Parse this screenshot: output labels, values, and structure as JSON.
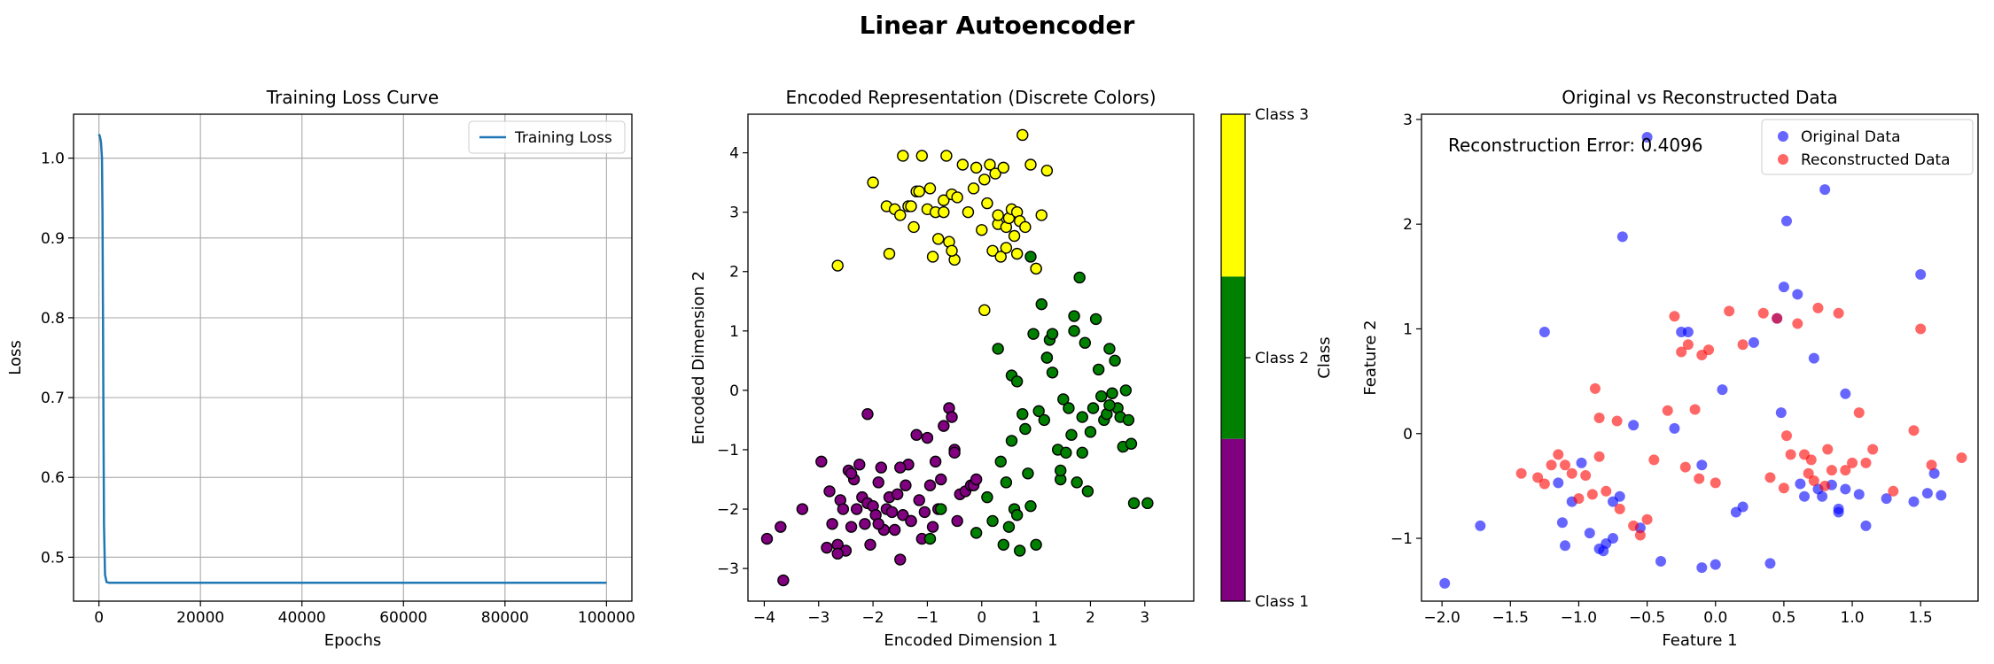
{
  "figure": {
    "title": "Linear Autoencoder"
  },
  "chart_data": [
    {
      "type": "line",
      "title": "Training Loss Curve",
      "xlabel": "Epochs",
      "ylabel": "Loss",
      "xlim": [
        -5000,
        105000
      ],
      "ylim": [
        0.445,
        1.055
      ],
      "xticks": [
        0,
        20000,
        40000,
        60000,
        80000,
        100000
      ],
      "yticks": [
        0.5,
        0.6,
        0.7,
        0.8,
        0.9,
        1.0
      ],
      "xtick_labels": [
        "0",
        "20000",
        "40000",
        "60000",
        "80000",
        "100000"
      ],
      "ytick_labels": [
        "0.5",
        "0.6",
        "0.7",
        "0.8",
        "0.9",
        "1.0"
      ],
      "grid": true,
      "legend": "upper right",
      "color": "#1f77b4",
      "series": [
        {
          "name": "Training Loss",
          "x": [
            0,
            200,
            400,
            600,
            700,
            800,
            900,
            1000,
            1200,
            1500,
            2000,
            5000,
            20000,
            50000,
            80000,
            100000
          ],
          "y": [
            1.03,
            1.027,
            1.02,
            1.0,
            0.93,
            0.8,
            0.66,
            0.54,
            0.478,
            0.469,
            0.468,
            0.468,
            0.468,
            0.468,
            0.468,
            0.468
          ]
        }
      ]
    },
    {
      "type": "scatter",
      "title": "Encoded Representation (Discrete Colors)",
      "xlabel": "Encoded Dimension 1",
      "ylabel": "Encoded Dimension 2",
      "xlim": [
        -4.3,
        3.9
      ],
      "ylim": [
        -3.55,
        4.65
      ],
      "xticks": [
        -4,
        -3,
        -2,
        -1,
        0,
        1,
        2,
        3
      ],
      "yticks": [
        -3,
        -2,
        -1,
        0,
        1,
        2,
        3,
        4
      ],
      "xtick_labels": [
        "−4",
        "−3",
        "−2",
        "−1",
        "0",
        "1",
        "2",
        "3"
      ],
      "ytick_labels": [
        "−3",
        "−2",
        "−1",
        "0",
        "1",
        "2",
        "3",
        "4"
      ],
      "grid": false,
      "colorbar": {
        "label": "Class",
        "ticks": [
          "Class 1",
          "Class 2",
          "Class 3"
        ],
        "colors": [
          "#800080",
          "#008000",
          "#ffff00"
        ]
      },
      "series": [
        {
          "name": "Class 1",
          "color": "#800080",
          "x": [
            -3.95,
            -3.7,
            -3.65,
            -3.3,
            -2.95,
            -2.85,
            -2.8,
            -2.75,
            -2.65,
            -2.6,
            -2.55,
            -2.5,
            -2.45,
            -2.4,
            -2.35,
            -2.3,
            -2.25,
            -2.2,
            -2.15,
            -2.1,
            -2.05,
            -2.0,
            -1.95,
            -1.9,
            -1.85,
            -1.8,
            -1.75,
            -1.7,
            -1.65,
            -1.6,
            -1.55,
            -1.5,
            -1.45,
            -1.4,
            -1.35,
            -1.3,
            -1.2,
            -1.15,
            -1.1,
            -1.05,
            -1.0,
            -0.95,
            -0.9,
            -0.85,
            -0.8,
            -0.75,
            -0.7,
            -0.6,
            -0.55,
            -0.5,
            -0.45,
            -0.4,
            -0.3,
            -0.2,
            -0.15,
            -0.1,
            -2.65,
            -2.1,
            -1.9,
            -1.5,
            -1.3,
            -2.4,
            -0.5
          ],
          "y": [
            -2.5,
            -2.3,
            -3.2,
            -2.0,
            -1.2,
            -2.65,
            -1.7,
            -2.25,
            -2.6,
            -1.85,
            -2.0,
            -2.7,
            -1.35,
            -2.3,
            -1.5,
            -2.0,
            -1.25,
            -1.8,
            -2.25,
            -1.9,
            -2.6,
            -1.95,
            -2.1,
            -1.55,
            -1.3,
            -2.35,
            -2.0,
            -1.8,
            -2.05,
            -2.35,
            -1.75,
            -2.85,
            -2.1,
            -1.6,
            -1.25,
            -2.2,
            -0.75,
            -1.85,
            -2.5,
            -2.05,
            -0.8,
            -1.6,
            -2.3,
            -1.2,
            -2.0,
            -1.5,
            -0.6,
            -0.3,
            -0.45,
            -1.0,
            -2.2,
            -1.75,
            -1.7,
            -1.6,
            -1.6,
            -1.5,
            -2.75,
            -0.4,
            -2.25,
            -1.3,
            -2.2,
            -1.4,
            -1.05
          ]
        },
        {
          "name": "Class 2",
          "color": "#008000",
          "x": [
            -0.95,
            -0.75,
            -0.1,
            0.1,
            0.2,
            0.35,
            0.4,
            0.45,
            0.5,
            0.55,
            0.6,
            0.65,
            0.7,
            0.75,
            0.8,
            0.85,
            0.9,
            0.95,
            1.0,
            1.05,
            1.1,
            1.15,
            1.2,
            1.25,
            1.3,
            1.4,
            1.45,
            1.5,
            1.55,
            1.6,
            1.65,
            1.7,
            1.75,
            1.8,
            1.85,
            1.9,
            1.95,
            2.0,
            2.05,
            2.1,
            2.15,
            2.2,
            2.25,
            2.3,
            2.35,
            2.4,
            2.5,
            2.55,
            2.6,
            2.65,
            2.7,
            2.75,
            2.8,
            3.05,
            0.3,
            0.65,
            0.55,
            0.9,
            1.2,
            1.7,
            1.85,
            2.45,
            1.0,
            1.3,
            1.45,
            2.35
          ],
          "y": [
            -2.5,
            -2.0,
            -2.4,
            -1.8,
            -2.2,
            -1.2,
            -2.6,
            -1.55,
            -2.3,
            0.25,
            -2.0,
            0.15,
            -2.7,
            -0.4,
            -0.65,
            -1.4,
            -1.95,
            0.95,
            -2.6,
            -0.35,
            1.45,
            -0.5,
            0.55,
            0.85,
            0.3,
            -1.0,
            -1.5,
            -0.15,
            -1.05,
            -0.3,
            -0.75,
            1.0,
            -1.55,
            1.9,
            -0.45,
            0.8,
            -1.7,
            -0.7,
            -0.3,
            1.2,
            0.35,
            -0.1,
            -0.5,
            -0.4,
            0.7,
            -0.05,
            -0.3,
            -0.45,
            -0.95,
            0.0,
            -0.5,
            -0.9,
            -1.9,
            -1.9,
            0.7,
            -2.1,
            -0.85,
            2.25,
            0.55,
            1.25,
            -1.05,
            0.5,
            2.05,
            0.95,
            -1.35,
            -0.25
          ]
        },
        {
          "name": "Class 3",
          "color": "#ffff00",
          "x": [
            -2.65,
            -2.0,
            -1.75,
            -1.7,
            -1.6,
            -1.5,
            -1.45,
            -1.35,
            -1.3,
            -1.25,
            -1.2,
            -1.15,
            -1.1,
            -1.0,
            -0.95,
            -0.9,
            -0.85,
            -0.8,
            -0.7,
            -0.65,
            -0.6,
            -0.55,
            -0.5,
            -0.45,
            -0.35,
            -0.25,
            -0.15,
            -0.1,
            0.0,
            0.05,
            0.1,
            0.15,
            0.2,
            0.25,
            0.3,
            0.35,
            0.4,
            0.45,
            0.5,
            0.55,
            0.6,
            0.65,
            0.7,
            0.75,
            0.8,
            0.9,
            1.0,
            1.1,
            1.2,
            -0.55,
            0.05,
            0.45,
            0.3,
            -0.7,
            0.65
          ],
          "y": [
            2.1,
            3.5,
            3.1,
            2.3,
            3.05,
            2.95,
            3.95,
            3.1,
            3.1,
            2.75,
            3.35,
            3.35,
            3.95,
            3.05,
            3.4,
            2.25,
            3.0,
            2.55,
            3.2,
            3.95,
            2.5,
            3.3,
            2.2,
            3.25,
            3.8,
            3.0,
            3.4,
            3.75,
            2.7,
            3.55,
            3.15,
            3.8,
            2.35,
            3.65,
            2.8,
            2.25,
            3.75,
            2.75,
            2.9,
            3.05,
            2.6,
            3.0,
            2.85,
            4.3,
            2.75,
            3.8,
            2.05,
            2.95,
            3.7,
            2.35,
            1.35,
            2.4,
            2.95,
            3.0,
            2.3
          ]
        }
      ]
    },
    {
      "type": "scatter",
      "title": "Original vs Reconstructed Data",
      "xlabel": "Feature 1",
      "ylabel": "Feature 2",
      "xlim": [
        -2.15,
        1.92
      ],
      "ylim": [
        -1.6,
        3.05
      ],
      "xticks": [
        -2.0,
        -1.5,
        -1.0,
        -0.5,
        0.0,
        0.5,
        1.0,
        1.5
      ],
      "yticks": [
        -1,
        0,
        1,
        2,
        3
      ],
      "xtick_labels": [
        "−2.0",
        "−1.5",
        "−1.0",
        "−0.5",
        "0.0",
        "0.5",
        "1.0",
        "1.5"
      ],
      "ytick_labels": [
        "−1",
        "0",
        "1",
        "2",
        "3"
      ],
      "grid": false,
      "legend": "upper right",
      "annotation": "Reconstruction Error: 0.4096",
      "series": [
        {
          "name": "Original Data",
          "color": "#0000ff",
          "x": [
            -1.98,
            -1.72,
            -1.25,
            -1.15,
            -1.12,
            -1.1,
            -1.05,
            -0.98,
            -0.92,
            -0.85,
            -0.82,
            -0.8,
            -0.75,
            -0.7,
            -0.6,
            -0.55,
            -0.5,
            -0.4,
            -0.3,
            -0.25,
            -0.1,
            0.0,
            0.05,
            0.15,
            0.2,
            0.28,
            0.4,
            0.45,
            0.48,
            0.5,
            0.52,
            0.6,
            0.65,
            0.72,
            0.75,
            0.78,
            0.8,
            0.85,
            0.9,
            0.95,
            1.05,
            1.1,
            1.25,
            1.45,
            1.5,
            1.55,
            1.6,
            1.65,
            -0.2,
            0.95,
            -0.68,
            -0.75,
            0.62,
            0.9,
            -0.1
          ],
          "y": [
            -1.43,
            -0.88,
            0.97,
            -0.47,
            -0.85,
            -1.07,
            -0.65,
            -0.28,
            -0.95,
            -1.1,
            -1.12,
            -1.05,
            -0.65,
            -0.6,
            0.08,
            -0.9,
            2.83,
            -1.22,
            0.05,
            0.97,
            -1.28,
            -1.25,
            0.42,
            -0.75,
            -0.7,
            0.87,
            -1.24,
            1.1,
            0.2,
            1.4,
            2.03,
            1.33,
            -0.6,
            0.72,
            -0.53,
            -0.6,
            2.33,
            -0.49,
            -0.72,
            -0.53,
            -0.58,
            -0.88,
            -0.62,
            -0.65,
            1.52,
            -0.57,
            -0.38,
            -0.59,
            0.97,
            0.38,
            1.88,
            -1.0,
            -0.48,
            -0.75,
            -0.3
          ]
        },
        {
          "name": "Reconstructed Data",
          "color": "#ff0000",
          "x": [
            -1.42,
            -1.3,
            -1.25,
            -1.2,
            -1.15,
            -1.1,
            -1.05,
            -1.0,
            -0.95,
            -0.9,
            -0.85,
            -0.8,
            -0.7,
            -0.6,
            -0.55,
            -0.5,
            -0.45,
            -0.35,
            -0.3,
            -0.25,
            -0.2,
            -0.15,
            -0.12,
            -0.1,
            -0.05,
            0.0,
            0.1,
            0.2,
            0.35,
            0.4,
            0.45,
            0.5,
            0.55,
            0.6,
            0.65,
            0.7,
            0.75,
            0.8,
            0.85,
            0.9,
            0.95,
            1.0,
            1.05,
            1.1,
            1.15,
            1.3,
            1.45,
            1.5,
            1.58,
            1.8,
            -0.88,
            -0.85,
            0.52,
            0.72,
            -0.22,
            -0.72,
            0.82,
            0.68
          ],
          "y": [
            -0.38,
            -0.42,
            -0.48,
            -0.3,
            -0.2,
            -0.3,
            -0.38,
            -0.62,
            -0.4,
            -0.58,
            0.15,
            -0.55,
            -0.72,
            -0.88,
            -0.97,
            -0.82,
            -0.25,
            0.22,
            1.12,
            0.78,
            0.85,
            0.23,
            -0.43,
            0.75,
            0.8,
            -0.47,
            1.17,
            0.85,
            1.15,
            -0.42,
            1.1,
            -0.52,
            -0.2,
            1.05,
            -0.2,
            -0.25,
            1.2,
            -0.5,
            -0.35,
            1.15,
            -0.35,
            -0.28,
            0.2,
            -0.28,
            -0.15,
            -0.55,
            0.03,
            1.0,
            -0.3,
            -0.23,
            0.43,
            -0.22,
            -0.02,
            -0.45,
            -0.32,
            0.12,
            -0.15,
            -0.38
          ]
        }
      ]
    }
  ]
}
